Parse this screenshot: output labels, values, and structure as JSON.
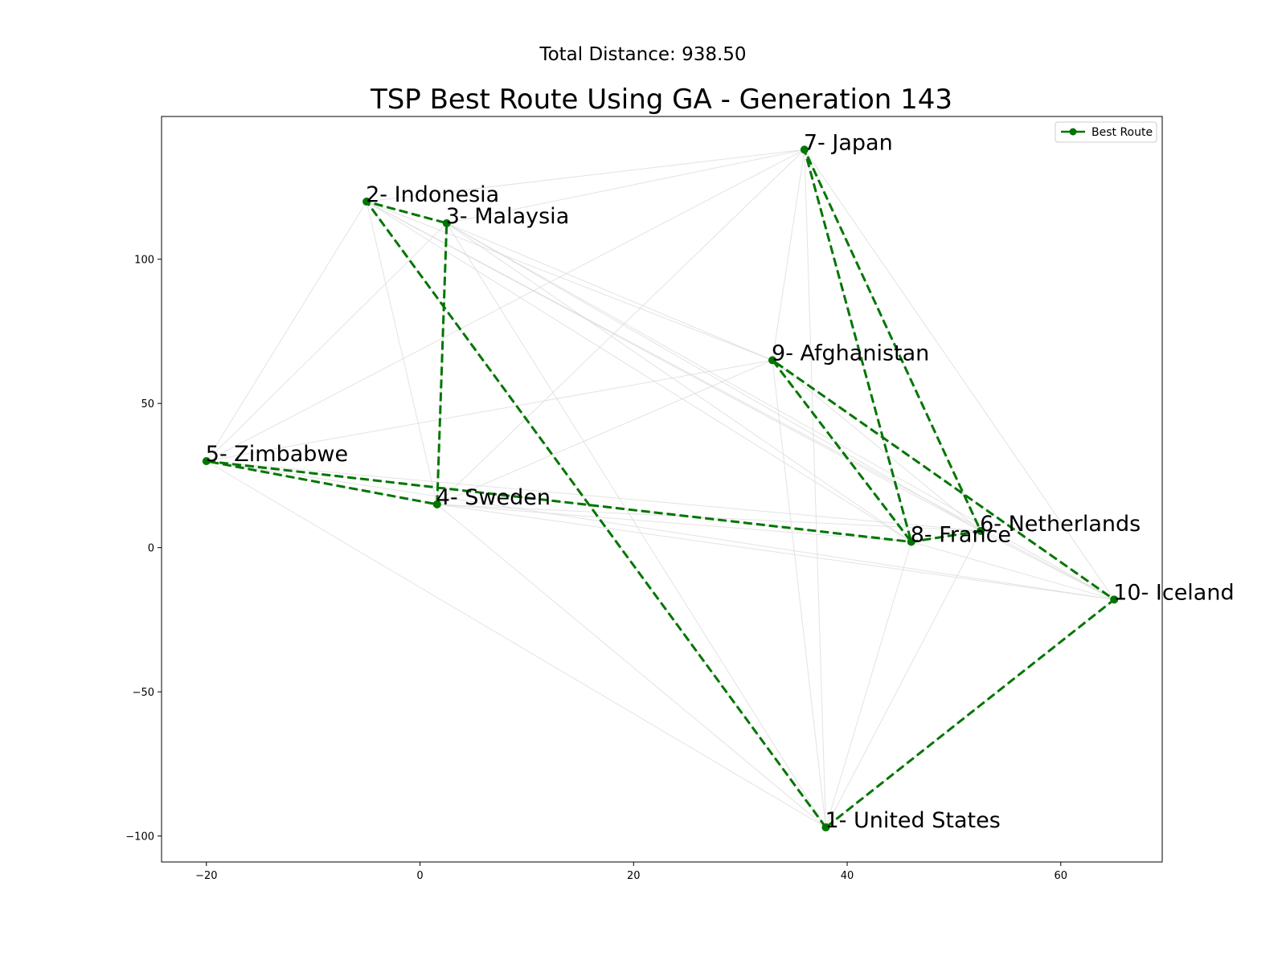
{
  "suptitle": "Total Distance: 938.50",
  "chart_data": {
    "type": "line",
    "title": "TSP Best Route Using GA - Generation 143",
    "xlabel": "",
    "ylabel": "",
    "xlim": [
      -24.2,
      69.5
    ],
    "ylim": [
      -109,
      149.5
    ],
    "xticks": [
      -20,
      0,
      20,
      40,
      60
    ],
    "yticks": [
      -100,
      -50,
      0,
      50,
      100
    ],
    "xtick_labels": [
      "−20",
      "0",
      "20",
      "40",
      "60"
    ],
    "ytick_labels": [
      "−100",
      "−50",
      "0",
      "50",
      "100"
    ],
    "grid": false,
    "legend": {
      "position": "top-right",
      "entries": [
        "Best Route"
      ]
    },
    "cities": [
      {
        "label": "1- United States",
        "x": 38.0,
        "y": -97.0
      },
      {
        "label": "2- Indonesia",
        "x": -5.0,
        "y": 120.0
      },
      {
        "label": "3- Malaysia",
        "x": 2.5,
        "y": 112.5
      },
      {
        "label": "4- Sweden",
        "x": 1.6,
        "y": 15.0
      },
      {
        "label": "5- Zimbabwe",
        "x": -20.0,
        "y": 30.0
      },
      {
        "label": "6- Netherlands",
        "x": 52.5,
        "y": 5.8
      },
      {
        "label": "7- Japan",
        "x": 36.0,
        "y": 138.0
      },
      {
        "label": "8- France",
        "x": 46.0,
        "y": 2.0
      },
      {
        "label": "9- Afghanistan",
        "x": 33.0,
        "y": 65.0
      },
      {
        "label": "10- Iceland",
        "x": 65.0,
        "y": -18.0
      }
    ],
    "series": [
      {
        "name": "Best Route",
        "color": "#007500",
        "style": "dashed",
        "route": [
          1,
          2,
          3,
          4,
          5,
          8,
          6,
          7,
          8,
          9,
          10,
          1
        ]
      }
    ],
    "background_edges_color": "#d9d9d9"
  }
}
